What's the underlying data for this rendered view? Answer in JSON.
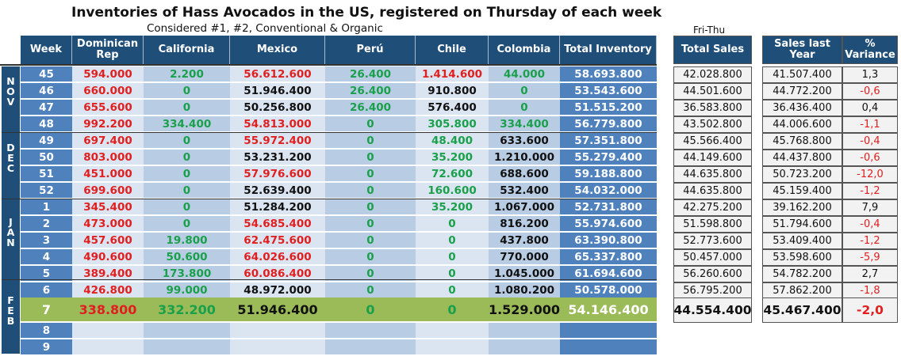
{
  "title": "Inventories of Hass Avocados in the US, registered on Thursday of each week",
  "subtitle": "Considered #1, #2, Conventional & Organic",
  "sales_period": "Fri-Thu",
  "headers": {
    "week": "Week",
    "dominican": "Dominican Rep",
    "california": "California",
    "mexico": "Mexico",
    "peru": "Perú",
    "chile": "Chile",
    "colombia": "Colombia",
    "total": "Total Inventory",
    "total_sales": "Total Sales",
    "sales_last_year": "Sales last Year",
    "variance": "% Variance"
  },
  "months": [
    {
      "letters": [
        "N",
        "O",
        "V"
      ]
    },
    {
      "letters": [
        "D",
        "E",
        "C"
      ]
    },
    {
      "letters": [
        "J",
        "A",
        "N"
      ]
    },
    {
      "letters": [
        "F",
        "E",
        "B"
      ]
    }
  ],
  "colors": {
    "red": "#e02020",
    "green": "#1aa04a",
    "black": "#111111",
    "header": "#1f4e79",
    "highlight": "#9bbb59"
  },
  "rows": [
    {
      "week": "45",
      "dom": "594.000",
      "cal": "2.200",
      "mex": "56.612.600",
      "peru": "26.400",
      "chile": "1.414.600",
      "col": "44.000",
      "total": "58.693.800",
      "sales": "42.028.800",
      "last": "41.507.400",
      "var": "1,3",
      "c": {
        "dom": "red",
        "cal": "green",
        "mex": "red",
        "peru": "green",
        "chile": "red",
        "col": "green",
        "var": "black"
      }
    },
    {
      "week": "46",
      "dom": "660.000",
      "cal": "0",
      "mex": "51.946.400",
      "peru": "26.400",
      "chile": "910.800",
      "col": "0",
      "total": "53.543.600",
      "sales": "44.501.600",
      "last": "44.772.200",
      "var": "-0,6",
      "c": {
        "dom": "red",
        "cal": "green",
        "mex": "black",
        "peru": "green",
        "chile": "black",
        "col": "green",
        "var": "red"
      }
    },
    {
      "week": "47",
      "dom": "655.600",
      "cal": "0",
      "mex": "50.256.800",
      "peru": "26.400",
      "chile": "576.400",
      "col": "0",
      "total": "51.515.200",
      "sales": "36.583.800",
      "last": "36.436.400",
      "var": "0,4",
      "c": {
        "dom": "red",
        "cal": "green",
        "mex": "black",
        "peru": "green",
        "chile": "black",
        "col": "green",
        "var": "black"
      }
    },
    {
      "week": "48",
      "dom": "992.200",
      "cal": "334.400",
      "mex": "54.813.000",
      "peru": "0",
      "chile": "305.800",
      "col": "334.400",
      "total": "56.779.800",
      "sales": "43.502.800",
      "last": "44.006.600",
      "var": "-1,1",
      "c": {
        "dom": "red",
        "cal": "green",
        "mex": "red",
        "peru": "green",
        "chile": "green",
        "col": "green",
        "var": "red"
      }
    },
    {
      "week": "49",
      "dom": "697.400",
      "cal": "0",
      "mex": "55.972.400",
      "peru": "0",
      "chile": "48.400",
      "col": "633.600",
      "total": "57.351.800",
      "sales": "45.566.400",
      "last": "45.768.800",
      "var": "-0,4",
      "c": {
        "dom": "red",
        "cal": "green",
        "mex": "red",
        "peru": "green",
        "chile": "green",
        "col": "black",
        "var": "red"
      }
    },
    {
      "week": "50",
      "dom": "803.000",
      "cal": "0",
      "mex": "53.231.200",
      "peru": "0",
      "chile": "35.200",
      "col": "1.210.000",
      "total": "55.279.400",
      "sales": "44.149.600",
      "last": "44.437.800",
      "var": "-0,6",
      "c": {
        "dom": "red",
        "cal": "green",
        "mex": "black",
        "peru": "green",
        "chile": "green",
        "col": "black",
        "var": "red"
      }
    },
    {
      "week": "51",
      "dom": "451.000",
      "cal": "0",
      "mex": "57.976.600",
      "peru": "0",
      "chile": "72.600",
      "col": "688.600",
      "total": "59.188.800",
      "sales": "44.635.800",
      "last": "50.723.200",
      "var": "-12,0",
      "c": {
        "dom": "red",
        "cal": "green",
        "mex": "red",
        "peru": "green",
        "chile": "green",
        "col": "black",
        "var": "red"
      }
    },
    {
      "week": "52",
      "dom": "699.600",
      "cal": "0",
      "mex": "52.639.400",
      "peru": "0",
      "chile": "160.600",
      "col": "532.400",
      "total": "54.032.000",
      "sales": "44.635.800",
      "last": "45.159.400",
      "var": "-1,2",
      "c": {
        "dom": "red",
        "cal": "green",
        "mex": "black",
        "peru": "green",
        "chile": "green",
        "col": "black",
        "var": "red"
      }
    },
    {
      "week": "1",
      "dom": "345.400",
      "cal": "0",
      "mex": "51.284.200",
      "peru": "0",
      "chile": "35.200",
      "col": "1.067.000",
      "total": "52.731.800",
      "sales": "42.275.200",
      "last": "39.162.200",
      "var": "7,9",
      "c": {
        "dom": "red",
        "cal": "green",
        "mex": "black",
        "peru": "green",
        "chile": "green",
        "col": "black",
        "var": "black"
      }
    },
    {
      "week": "2",
      "dom": "473.000",
      "cal": "0",
      "mex": "54.685.400",
      "peru": "0",
      "chile": "0",
      "col": "816.200",
      "total": "55.974.600",
      "sales": "51.598.800",
      "last": "51.794.600",
      "var": "-0,4",
      "c": {
        "dom": "red",
        "cal": "green",
        "mex": "red",
        "peru": "green",
        "chile": "green",
        "col": "black",
        "var": "red"
      }
    },
    {
      "week": "3",
      "dom": "457.600",
      "cal": "19.800",
      "mex": "62.475.600",
      "peru": "0",
      "chile": "0",
      "col": "437.800",
      "total": "63.390.800",
      "sales": "52.773.600",
      "last": "53.409.400",
      "var": "-1,2",
      "c": {
        "dom": "red",
        "cal": "green",
        "mex": "red",
        "peru": "green",
        "chile": "green",
        "col": "black",
        "var": "red"
      }
    },
    {
      "week": "4",
      "dom": "490.600",
      "cal": "50.600",
      "mex": "64.026.600",
      "peru": "0",
      "chile": "0",
      "col": "770.000",
      "total": "65.337.800",
      "sales": "50.457.000",
      "last": "53.598.600",
      "var": "-5,9",
      "c": {
        "dom": "red",
        "cal": "green",
        "mex": "red",
        "peru": "green",
        "chile": "green",
        "col": "black",
        "var": "red"
      }
    },
    {
      "week": "5",
      "dom": "389.400",
      "cal": "173.800",
      "mex": "60.086.400",
      "peru": "0",
      "chile": "0",
      "col": "1.045.000",
      "total": "61.694.600",
      "sales": "56.260.600",
      "last": "54.782.200",
      "var": "2,7",
      "c": {
        "dom": "red",
        "cal": "green",
        "mex": "red",
        "peru": "green",
        "chile": "green",
        "col": "black",
        "var": "black"
      }
    },
    {
      "week": "6",
      "dom": "426.800",
      "cal": "99.000",
      "mex": "48.972.000",
      "peru": "0",
      "chile": "0",
      "col": "1.080.200",
      "total": "50.578.000",
      "sales": "56.795.200",
      "last": "57.862.200",
      "var": "-1,8",
      "c": {
        "dom": "red",
        "cal": "green",
        "mex": "black",
        "peru": "green",
        "chile": "green",
        "col": "black",
        "var": "red"
      }
    },
    {
      "week": "7",
      "dom": "338.800",
      "cal": "332.200",
      "mex": "51.946.400",
      "peru": "0",
      "chile": "0",
      "col": "1.529.000",
      "total": "54.146.400",
      "sales": "44.554.400",
      "last": "45.467.400",
      "var": "-2,0",
      "c": {
        "dom": "red",
        "cal": "green",
        "mex": "black",
        "peru": "green",
        "chile": "green",
        "col": "black",
        "var": "red"
      },
      "highlight": true
    },
    {
      "week": "8",
      "dom": "",
      "cal": "",
      "mex": "",
      "peru": "",
      "chile": "",
      "col": "",
      "total": "",
      "sales": "",
      "last": "",
      "var": "",
      "c": {}
    },
    {
      "week": "9",
      "dom": "",
      "cal": "",
      "mex": "",
      "peru": "",
      "chile": "",
      "col": "",
      "total": "",
      "sales": "",
      "last": "",
      "var": "",
      "c": {}
    }
  ]
}
